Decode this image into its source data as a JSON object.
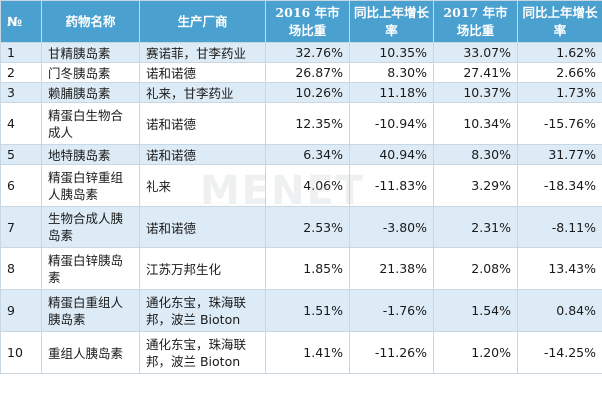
{
  "table": {
    "headers": {
      "idx": "№",
      "name": "药物名称",
      "maker": "生产厂商",
      "share2016": "2016 年市场比重",
      "growth2016": "同比上年增长率",
      "share2017": "2017 年市场比重",
      "growth2017": "同比上年增长率"
    },
    "rows": [
      {
        "idx": "1",
        "name": "甘精胰岛素",
        "maker": "赛诺菲，甘李药业",
        "share2016": "32.76%",
        "growth2016": "10.35%",
        "share2017": "33.07%",
        "growth2017": "1.62%"
      },
      {
        "idx": "2",
        "name": "门冬胰岛素",
        "maker": "诺和诺德",
        "share2016": "26.87%",
        "growth2016": "8.30%",
        "share2017": "27.41%",
        "growth2017": "2.66%"
      },
      {
        "idx": "3",
        "name": "赖脯胰岛素",
        "maker": "礼来，甘李药业",
        "share2016": "10.26%",
        "growth2016": "11.18%",
        "share2017": "10.37%",
        "growth2017": "1.73%"
      },
      {
        "idx": "4",
        "name": "精蛋白生物合成人",
        "maker": "诺和诺德",
        "share2016": "12.35%",
        "growth2016": "-10.94%",
        "share2017": "10.34%",
        "growth2017": "-15.76%"
      },
      {
        "idx": "5",
        "name": "地特胰岛素",
        "maker": "诺和诺德",
        "share2016": "6.34%",
        "growth2016": "40.94%",
        "share2017": "8.30%",
        "growth2017": "31.77%"
      },
      {
        "idx": "6",
        "name": "精蛋白锌重组人胰岛素",
        "maker": "礼来",
        "share2016": "4.06%",
        "growth2016": "-11.83%",
        "share2017": "3.29%",
        "growth2017": "-18.34%"
      },
      {
        "idx": "7",
        "name": "生物合成人胰岛素",
        "maker": "诺和诺德",
        "share2016": "2.53%",
        "growth2016": "-3.80%",
        "share2017": "2.31%",
        "growth2017": "-8.11%"
      },
      {
        "idx": "8",
        "name": "精蛋白锌胰岛素",
        "maker": "江苏万邦生化",
        "share2016": "1.85%",
        "growth2016": "21.38%",
        "share2017": "2.08%",
        "growth2017": "13.43%"
      },
      {
        "idx": "9",
        "name": "精蛋白重组人胰岛素",
        "maker": "通化东宝，珠海联邦，波兰 Bioton",
        "share2016": "1.51%",
        "growth2016": "-1.76%",
        "share2017": "1.54%",
        "growth2017": "0.84%"
      },
      {
        "idx": "10",
        "name": "重组人胰岛素",
        "maker": "通化东宝，珠海联邦，波兰 Bioton",
        "share2016": "1.41%",
        "growth2016": "-11.26%",
        "share2017": "1.20%",
        "growth2017": "-14.25%"
      }
    ]
  },
  "watermark": "MENET"
}
